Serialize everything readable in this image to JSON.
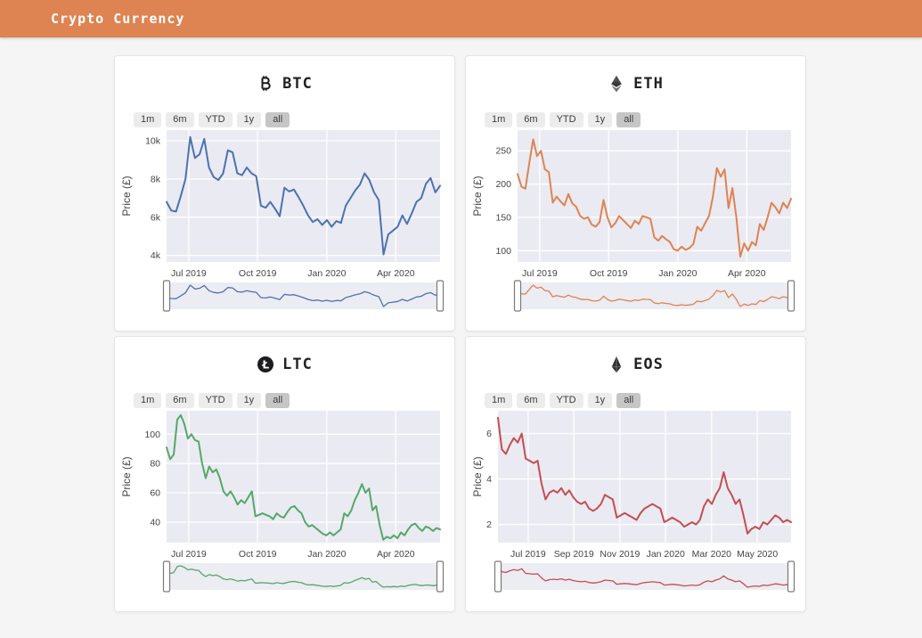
{
  "header": {
    "title": "Crypto Currency",
    "bg_color": "#dd8452"
  },
  "range_buttons": [
    "1m",
    "6m",
    "YTD",
    "1y",
    "all"
  ],
  "selected_range": "all",
  "plot_background": "#eaeaf2",
  "grid_color": "#ffffff",
  "tick_color": "#444444",
  "chart_data": [
    {
      "type": "line",
      "title": "BTC",
      "icon": "bitcoin-icon",
      "color": "#4c72b0",
      "ylabel": "Price (£)",
      "ytick_values": [
        4000,
        6000,
        8000,
        10000
      ],
      "ytick_labels": [
        "4k",
        "6k",
        "8k",
        "10k"
      ],
      "ylim": [
        3660,
        10560
      ],
      "xtick_labels": [
        "Jul 2019",
        "Oct 2019",
        "Jan 2020",
        "Apr 2020"
      ],
      "xtick_pos": [
        0.081,
        0.333,
        0.586,
        0.838
      ],
      "x_range": [
        "Jun 2019",
        "Jun 2020"
      ],
      "grid": true,
      "values": [
        6800,
        6350,
        6300,
        7100,
        8000,
        10200,
        9100,
        9300,
        10100,
        8600,
        8100,
        7950,
        8300,
        9500,
        9400,
        8300,
        8200,
        8600,
        8300,
        8150,
        6600,
        6500,
        6800,
        6450,
        6050,
        7550,
        7350,
        7450,
        7050,
        6600,
        6100,
        5750,
        5900,
        5600,
        5850,
        5500,
        5800,
        5700,
        6600,
        7000,
        7400,
        7700,
        8300,
        7950,
        7300,
        6900,
        4050,
        5100,
        5300,
        5500,
        6100,
        5650,
        6200,
        6800,
        7000,
        7750,
        8050,
        7300,
        7650
      ]
    },
    {
      "type": "line",
      "title": "ETH",
      "icon": "ethereum-icon",
      "color": "#dd8452",
      "ylabel": "Price (£)",
      "ytick_values": [
        100,
        150,
        200,
        250
      ],
      "ytick_labels": [
        "100",
        "150",
        "200",
        "250"
      ],
      "ylim": [
        83,
        281
      ],
      "xtick_labels": [
        "Jul 2019",
        "Oct 2019",
        "Jan 2020",
        "Apr 2020"
      ],
      "xtick_pos": [
        0.081,
        0.333,
        0.586,
        0.838
      ],
      "x_range": [
        "Jun 2019",
        "Jun 2020"
      ],
      "grid": true,
      "values": [
        215,
        196,
        193,
        232,
        267,
        242,
        250,
        222,
        218,
        172,
        181,
        174,
        168,
        185,
        171,
        166,
        152,
        148,
        150,
        139,
        136,
        143,
        176,
        150,
        135,
        141,
        152,
        146,
        140,
        134,
        145,
        140,
        152,
        150,
        148,
        120,
        115,
        122,
        117,
        113,
        102,
        100,
        106,
        101,
        104,
        110,
        136,
        130,
        141,
        152,
        181,
        224,
        211,
        222,
        164,
        194,
        150,
        91,
        111,
        100,
        113,
        108,
        140,
        131,
        150,
        172,
        165,
        156,
        172,
        164,
        178
      ]
    },
    {
      "type": "line",
      "title": "LTC",
      "icon": "litecoin-icon",
      "color": "#55a868",
      "ylabel": "Price (£)",
      "ytick_values": [
        40,
        60,
        80,
        100
      ],
      "ytick_labels": [
        "40",
        "60",
        "80",
        "100"
      ],
      "ylim": [
        26,
        116
      ],
      "xtick_labels": [
        "Jul 2019",
        "Oct 2019",
        "Jan 2020",
        "Apr 2020"
      ],
      "xtick_pos": [
        0.081,
        0.333,
        0.586,
        0.838
      ],
      "x_range": [
        "Jun 2019",
        "Jun 2020"
      ],
      "grid": true,
      "values": [
        91,
        83,
        86,
        110,
        113,
        107,
        97,
        100,
        96,
        95,
        80,
        70,
        78,
        74,
        76,
        70,
        61,
        58,
        61,
        57,
        52,
        55,
        53,
        57,
        61,
        44,
        45,
        46,
        45,
        44,
        42,
        46,
        44,
        43,
        47,
        50,
        51,
        48,
        46,
        40,
        37,
        38,
        36,
        34,
        32,
        31,
        33,
        31,
        33,
        35,
        46,
        44,
        48,
        55,
        60,
        66,
        60,
        63,
        48,
        51,
        38,
        28,
        30,
        29,
        31,
        29,
        33,
        31,
        35,
        38,
        39,
        36,
        34,
        37,
        36,
        34,
        36,
        35
      ]
    },
    {
      "type": "line",
      "title": "EOS",
      "icon": "eos-icon",
      "color": "#c44e52",
      "ylabel": "Price (£)",
      "ytick_values": [
        2,
        4,
        6
      ],
      "ytick_labels": [
        "2",
        "4",
        "6"
      ],
      "ylim": [
        1.2,
        7.0
      ],
      "xtick_labels": [
        "Jul 2019",
        "Sep 2019",
        "Nov 2019",
        "Jan 2020",
        "Mar 2020",
        "May 2020"
      ],
      "xtick_pos": [
        0.103,
        0.259,
        0.416,
        0.572,
        0.729,
        0.885
      ],
      "x_range": [
        "Jun 2019",
        "Jun 2020"
      ],
      "grid": true,
      "values": [
        6.7,
        5.3,
        5.1,
        5.5,
        5.8,
        5.6,
        6.0,
        4.9,
        4.8,
        4.7,
        4.8,
        3.8,
        3.1,
        3.4,
        3.5,
        3.4,
        3.6,
        3.3,
        3.5,
        3.2,
        3.0,
        2.9,
        3.0,
        2.7,
        2.6,
        2.7,
        2.9,
        3.3,
        3.2,
        3.1,
        2.3,
        2.4,
        2.5,
        2.4,
        2.3,
        2.2,
        2.5,
        2.7,
        2.8,
        2.9,
        2.8,
        2.7,
        2.1,
        2.2,
        2.3,
        2.2,
        2.1,
        1.9,
        2.0,
        2.1,
        2.0,
        2.2,
        2.8,
        3.1,
        2.9,
        3.3,
        3.6,
        4.3,
        3.6,
        3.3,
        2.9,
        3.1,
        2.4,
        1.6,
        1.8,
        1.9,
        1.8,
        2.1,
        2.0,
        2.2,
        2.4,
        2.3,
        2.1,
        2.2,
        2.1
      ]
    }
  ]
}
